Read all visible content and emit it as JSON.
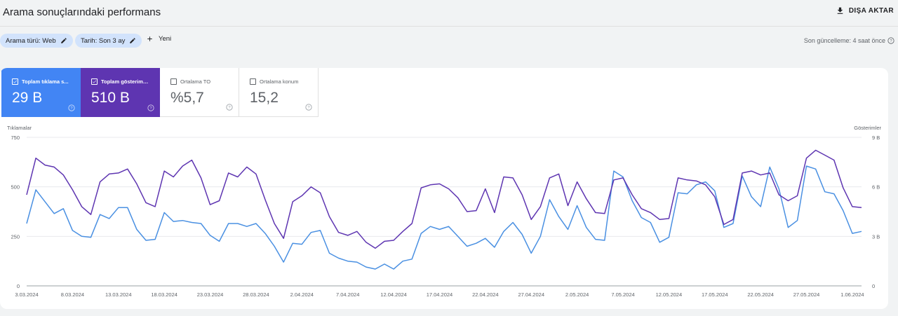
{
  "header": {
    "title": "Arama sonuçlarındaki performans",
    "export_label": "DIŞA AKTAR"
  },
  "filters": {
    "search_type": "Arama türü: Web",
    "date": "Tarih: Son 3 ay",
    "new_label": "Yeni",
    "last_update": "Son güncelleme: 4 saat önce"
  },
  "metrics": [
    {
      "label": "Toplam tıklama sayısı",
      "label_short": "Toplam tıklama s...",
      "value": "29 B",
      "selected": true,
      "color": "#4285f4"
    },
    {
      "label": "Toplam gösterim sayısı",
      "label_short": "Toplam gösterim ...",
      "value": "510 B",
      "selected": true,
      "color": "#5e35b1"
    },
    {
      "label": "Ortalama TO",
      "label_short": "Ortalama TO",
      "value": "%5,7",
      "selected": false
    },
    {
      "label": "Ortalama konum",
      "label_short": "Ortalama konum",
      "value": "15,2",
      "selected": false
    }
  ],
  "chart_data": {
    "type": "line",
    "ylabel_left": "Tıklamalar",
    "ylabel_right": "Gösterimler",
    "y_left_ticks": [
      "750",
      "500",
      "250",
      "0"
    ],
    "y_right_ticks": [
      "9 B",
      "6 B",
      "3 B",
      "0"
    ],
    "ylim_left": [
      0,
      750
    ],
    "ylim_right": [
      0,
      9000
    ],
    "grid": true,
    "x": [
      "3.03.2024",
      "4.03.2024",
      "5.03.2024",
      "6.03.2024",
      "7.03.2024",
      "8.03.2024",
      "9.03.2024",
      "10.03.2024",
      "11.03.2024",
      "12.03.2024",
      "13.03.2024",
      "14.03.2024",
      "15.03.2024",
      "16.03.2024",
      "17.03.2024",
      "18.03.2024",
      "19.03.2024",
      "20.03.2024",
      "21.03.2024",
      "22.03.2024",
      "23.03.2024",
      "24.03.2024",
      "25.03.2024",
      "26.03.2024",
      "27.03.2024",
      "28.03.2024",
      "29.03.2024",
      "30.03.2024",
      "31.03.2024",
      "1.04.2024",
      "2.04.2024",
      "3.04.2024",
      "4.04.2024",
      "5.04.2024",
      "6.04.2024",
      "7.04.2024",
      "8.04.2024",
      "9.04.2024",
      "10.04.2024",
      "11.04.2024",
      "12.04.2024",
      "13.04.2024",
      "14.04.2024",
      "15.04.2024",
      "16.04.2024",
      "17.04.2024",
      "18.04.2024",
      "19.04.2024",
      "20.04.2024",
      "21.04.2024",
      "22.04.2024",
      "23.04.2024",
      "24.04.2024",
      "25.04.2024",
      "26.04.2024",
      "27.04.2024",
      "28.04.2024",
      "29.04.2024",
      "30.04.2024",
      "1.05.2024",
      "2.05.2024",
      "3.05.2024",
      "4.05.2024",
      "5.05.2024",
      "6.05.2024",
      "7.05.2024",
      "8.05.2024",
      "9.05.2024",
      "10.05.2024",
      "11.05.2024",
      "12.05.2024",
      "13.05.2024",
      "14.05.2024",
      "15.05.2024",
      "16.05.2024",
      "17.05.2024",
      "18.05.2024",
      "19.05.2024",
      "20.05.2024",
      "21.05.2024",
      "22.05.2024",
      "23.05.2024",
      "24.05.2024",
      "25.05.2024",
      "26.05.2024",
      "27.05.2024",
      "28.05.2024",
      "29.05.2024",
      "30.05.2024",
      "31.05.2024",
      "1.06.2024",
      "2.06.2024"
    ],
    "x_tick_labels": [
      "3.03.2024",
      "8.03.2024",
      "13.03.2024",
      "18.03.2024",
      "23.03.2024",
      "28.03.2024",
      "2.04.2024",
      "7.04.2024",
      "12.04.2024",
      "17.04.2024",
      "22.04.2024",
      "27.04.2024",
      "2.05.2024",
      "7.05.2024",
      "12.05.2024",
      "17.05.2024",
      "22.05.2024",
      "27.05.2024",
      "1.06.2024"
    ],
    "series": [
      {
        "name": "Tıklamalar",
        "axis": "left",
        "color": "#4a90e2",
        "values": [
          315,
          485,
          425,
          365,
          390,
          280,
          250,
          245,
          360,
          340,
          395,
          395,
          285,
          230,
          235,
          370,
          325,
          330,
          320,
          315,
          255,
          225,
          315,
          315,
          300,
          315,
          265,
          200,
          120,
          215,
          210,
          270,
          280,
          165,
          140,
          125,
          120,
          95,
          85,
          110,
          85,
          125,
          135,
          265,
          300,
          285,
          300,
          250,
          200,
          215,
          240,
          195,
          275,
          320,
          260,
          165,
          250,
          435,
          350,
          285,
          405,
          295,
          235,
          230,
          580,
          550,
          430,
          345,
          320,
          220,
          245,
          470,
          465,
          510,
          525,
          480,
          295,
          315,
          555,
          450,
          400,
          600,
          490,
          295,
          330,
          605,
          590,
          475,
          465,
          380,
          265,
          275
        ]
      },
      {
        "name": "Gösterimler",
        "axis": "right",
        "color": "#5e35b1",
        "values": [
          5520,
          7740,
          7320,
          7200,
          6720,
          5820,
          4800,
          4320,
          6300,
          6780,
          6840,
          7080,
          6180,
          5040,
          4800,
          6960,
          6600,
          7260,
          7620,
          6540,
          4920,
          5160,
          6840,
          6600,
          7200,
          6780,
          5220,
          3780,
          2880,
          5100,
          5460,
          6000,
          5640,
          4200,
          3240,
          3060,
          3300,
          2640,
          2280,
          2700,
          2760,
          3300,
          3780,
          5940,
          6120,
          6180,
          5880,
          5340,
          4500,
          4560,
          5880,
          4440,
          6600,
          6540,
          5520,
          4020,
          4800,
          6540,
          6780,
          4860,
          6300,
          5280,
          4440,
          4380,
          6420,
          6540,
          5520,
          4680,
          4440,
          4020,
          4080,
          6540,
          6420,
          6360,
          6120,
          5400,
          3720,
          4020,
          6840,
          6960,
          6720,
          6840,
          5520,
          5160,
          5460,
          7740,
          8220,
          7920,
          7620,
          5940,
          4800,
          4740
        ]
      }
    ]
  }
}
